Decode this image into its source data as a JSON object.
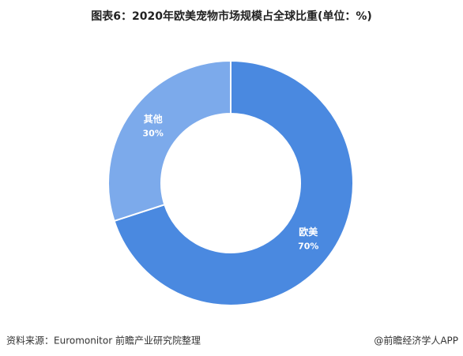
{
  "chart_data": {
    "type": "donut",
    "title": "图表6：2020年欧美宠物市场规模占全球比重(单位：%)",
    "categories": [
      "欧美",
      "其他"
    ],
    "values": [
      70,
      30
    ],
    "value_labels": [
      "70%",
      "30%"
    ],
    "colors": [
      "#4a89e0",
      "#7caaeb"
    ],
    "source": "资料来源：Euromonitor 前瞻产业研究院整理",
    "credit": "@前瞻经济学人APP"
  }
}
